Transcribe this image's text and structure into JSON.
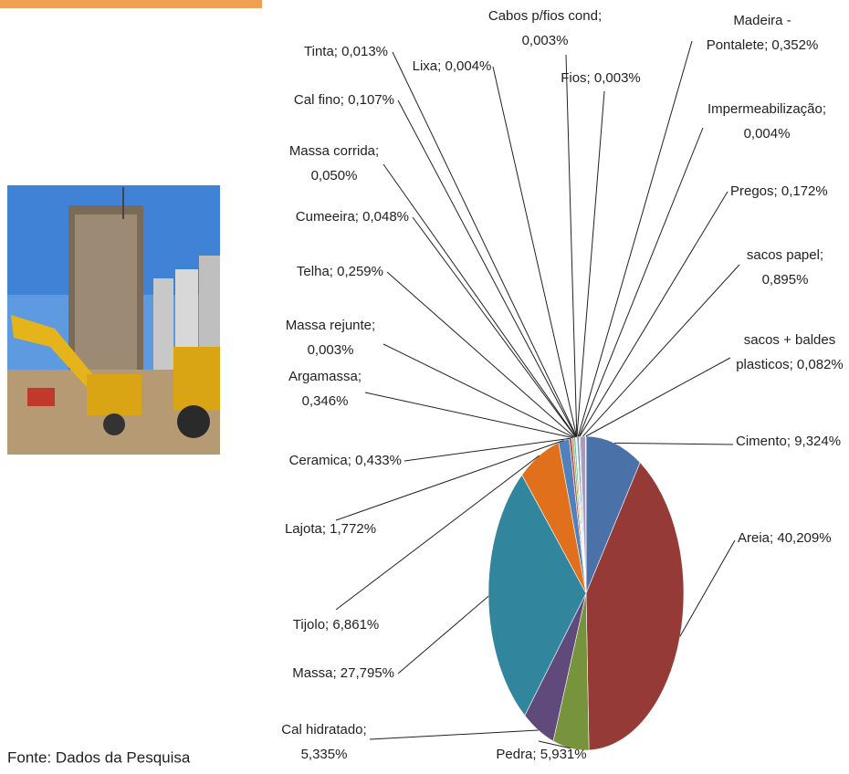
{
  "chart_data": {
    "type": "pie",
    "values": [
      9.324,
      40.209,
      5.931,
      5.335,
      27.795,
      6.861,
      1.772,
      0.433,
      0.346,
      0.003,
      0.259,
      0.048,
      0.05,
      0.107,
      0.013,
      0.004,
      0.003,
      0.003,
      0.352,
      0.004,
      0.172,
      0.895,
      0.082
    ],
    "value_labels": [
      "Cimento; 9,324%",
      "Areia; 40,209%",
      "Pedra; 5,931%",
      "Cal hidratado; 5,335%",
      "Massa; 27,795%",
      "Tijolo; 6,861%",
      "Lajota; 1,772%",
      "Ceramica; 0,433%",
      "Argamassa; 0,346%",
      "Massa rejunte; 0,003%",
      "Telha; 0,259%",
      "Cumeeira; 0,048%",
      "Massa corrida; 0,050%",
      "Cal fino; 0,107%",
      "Tinta; 0,013%",
      "Lixa; 0,004%",
      "Cabos p/fios cond; 0,003%",
      "Fios; 0,003%",
      "Madeira - Pontalete; 0,352%",
      "Impermeabilização; 0,004%",
      "Pregos; 0,172%",
      "sacos papel; 0,895%",
      "sacos + baldes plasticos; 0,082%"
    ],
    "colors": [
      "#4a71a8",
      "#963a37",
      "#77933c",
      "#604a7b",
      "#31859c",
      "#e0701c",
      "#4f81bd",
      "#c0504d",
      "#9bbb59",
      "#8064a2",
      "#4bacc6",
      "#f79646",
      "#2c4d75",
      "#772c2a",
      "#5f7530",
      "#4d3b62",
      "#276a7c",
      "#b65708",
      "#729aca",
      "#cd7371",
      "#afc97a",
      "#a99bbd",
      "#c9c9c9"
    ]
  },
  "source": "Fonte: Dados da Pesquisa"
}
